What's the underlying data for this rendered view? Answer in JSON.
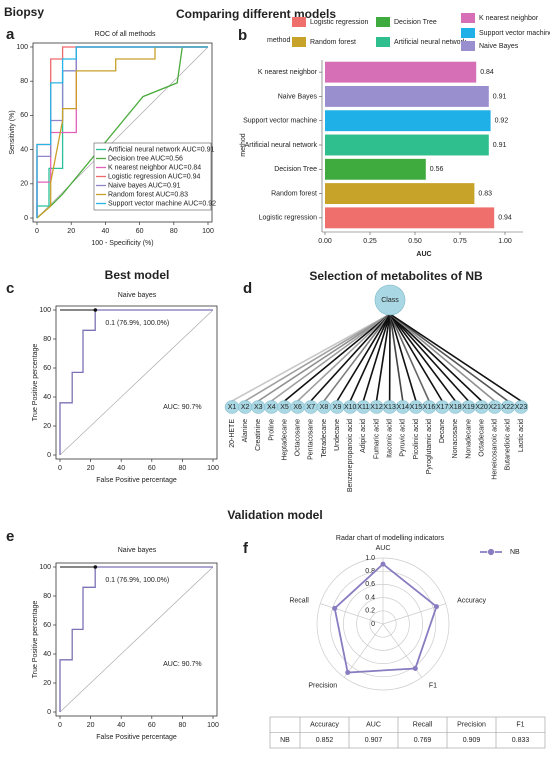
{
  "headings": {
    "biopsy": "Biopsy",
    "comparison": "Comparing different models",
    "validation": "Validation model"
  },
  "panel_labels": [
    "a",
    "b",
    "c",
    "d",
    "e",
    "f"
  ],
  "chart_data": [
    {
      "type": "roc",
      "title": "ROC of all methods",
      "xlabel": "100 - Specificity (%)",
      "ylabel": "Sensitivity (%)",
      "xlim": [
        0,
        100
      ],
      "ylim": [
        0,
        100
      ],
      "xticks": [
        0,
        20,
        40,
        60,
        80,
        100
      ],
      "yticks": [
        0,
        20,
        40,
        60,
        80,
        100
      ],
      "series": [
        {
          "name": "Artificial neural network AUC=0.91",
          "color": "#2bbf9a",
          "x": [
            0,
            0,
            7,
            7,
            15,
            15,
            23,
            23,
            100
          ],
          "values": [
            0,
            7,
            7,
            29,
            29,
            86,
            86,
            100,
            100
          ]
        },
        {
          "name": "Decision tree AUC=0.56",
          "color": "#4aab3c",
          "x": [
            0,
            8,
            15,
            62,
            82,
            85,
            100
          ],
          "values": [
            0,
            7,
            14,
            71,
            79,
            100,
            100
          ]
        },
        {
          "name": "K nearest neighbor AUC=0.84",
          "color": "#e062b8",
          "x": [
            0,
            0,
            8,
            8,
            23,
            23,
            100
          ],
          "values": [
            0,
            21,
            21,
            50,
            50,
            100,
            100
          ]
        },
        {
          "name": "Logistic regression AUC=0.94",
          "color": "#f0696c",
          "x": [
            0,
            0,
            8,
            8,
            15,
            15,
            100
          ],
          "values": [
            0,
            43,
            43,
            93,
            93,
            100,
            100
          ]
        },
        {
          "name": "Naive bayes AUC=0.91",
          "color": "#8f86c9",
          "x": [
            0,
            0,
            8,
            8,
            15,
            15,
            23,
            23,
            100
          ],
          "values": [
            0,
            36,
            36,
            57,
            57,
            86,
            86,
            100,
            100
          ]
        },
        {
          "name": "Random forest AUC=0.83",
          "color": "#c9a02a",
          "x": [
            0,
            8,
            8,
            15,
            15,
            23,
            23,
            46,
            46,
            69,
            69,
            100
          ],
          "values": [
            0,
            7,
            21,
            57,
            64,
            64,
            86,
            86,
            93,
            93,
            100,
            100
          ]
        },
        {
          "name": "Support vector machine AUC=0.92",
          "color": "#27b4e6",
          "x": [
            0,
            0,
            8,
            8,
            15,
            15,
            23,
            23,
            100
          ],
          "values": [
            0,
            43,
            43,
            79,
            79,
            93,
            93,
            100,
            100
          ]
        }
      ]
    },
    {
      "type": "hbar",
      "xlabel": "AUC",
      "ylabel": "method",
      "legend_title": "method",
      "categories": [
        "K nearest neighbor",
        "Naive Bayes",
        "Support vector machine",
        "Artificial neural network",
        "Decision Tree",
        "Random forest",
        "Logistic regression"
      ],
      "values": [
        0.84,
        0.91,
        0.92,
        0.91,
        0.56,
        0.83,
        0.94
      ],
      "colors": [
        "#d66fb5",
        "#9a8fce",
        "#1eb0e6",
        "#2fbf8e",
        "#3fab3f",
        "#c8a32a",
        "#ef6f6c"
      ],
      "legend": [
        {
          "label": "Logistic regression",
          "color": "#ef6f6c"
        },
        {
          "label": "Random forest",
          "color": "#c8a32a"
        },
        {
          "label": "Decision Tree",
          "color": "#3fab3f"
        },
        {
          "label": "Artificial neural network",
          "color": "#2fbf8e"
        },
        {
          "label": "K nearest neighbor",
          "color": "#d66fb5"
        },
        {
          "label": "Support vector machine",
          "color": "#1eb0e6"
        },
        {
          "label": "Naive Bayes",
          "color": "#9a8fce"
        }
      ],
      "xlim": [
        0,
        1.1
      ],
      "xticks": [
        {
          "value": 0,
          "label": "0.00"
        },
        0.25,
        {
          "value": 0.5,
          "label": "0.50"
        },
        0.75,
        {
          "value": 1,
          "label": "1.00"
        }
      ]
    },
    {
      "type": "roc",
      "heading": "Best model",
      "title": "Naive bayes",
      "xlabel": "False Positive percentage",
      "ylabel": "True Positive percentage",
      "xlim": [
        0,
        100
      ],
      "ylim": [
        0,
        100
      ],
      "xticks": [
        0,
        20,
        40,
        60,
        80,
        100
      ],
      "yticks": [
        0,
        20,
        40,
        60,
        80,
        100
      ],
      "x": [
        0,
        0,
        8,
        8,
        15,
        15,
        23,
        23,
        100
      ],
      "series": [
        {
          "color": "#7b72b5",
          "values": [
            0,
            36,
            36,
            57,
            57,
            86,
            86,
            100,
            100
          ]
        }
      ],
      "point": [
        23.1,
        100
      ],
      "annotation": "0.1 (76.9%, 100.0%)",
      "auc_label": "AUC: 90.7%",
      "auc_color": "#8f86c9"
    },
    {
      "type": "roc",
      "title": "Naive bayes",
      "xlabel": "False Positive percentage",
      "ylabel": "True Positive percentage",
      "xlim": [
        0,
        100
      ],
      "ylim": [
        0,
        100
      ],
      "xticks": [
        0,
        20,
        40,
        60,
        80,
        100
      ],
      "yticks": [
        0,
        20,
        40,
        60,
        80,
        100
      ],
      "x": [
        0,
        0,
        8,
        8,
        15,
        15,
        23,
        23,
        100
      ],
      "series": [
        {
          "color": "#7b72b5",
          "values": [
            0,
            36,
            36,
            57,
            57,
            86,
            86,
            100,
            100
          ]
        }
      ],
      "point": [
        23.1,
        100
      ],
      "annotation": "0.1 (76.9%, 100.0%)",
      "auc_label": "AUC: 90.7%",
      "auc_color": "#8f86c9"
    },
    {
      "type": "radar",
      "title": "Radar chart of modelling indicators",
      "axes": [
        "AUC",
        "Accuracy",
        "F1",
        "Precision",
        "Recall"
      ],
      "rlim": [
        0,
        1
      ],
      "rticks": [
        0,
        0.2,
        0.4,
        0.6,
        0.8,
        {
          "value": 1,
          "label": "1.0"
        }
      ],
      "series": [
        {
          "name": "NB",
          "color": "#8a7cc0",
          "values": [
            0.907,
            0.852,
            0.833,
            0.909,
            0.769
          ]
        }
      ]
    }
  ],
  "diagram": {
    "title": "Selection of metabolites of NB",
    "root": "Class",
    "nodes": [
      {
        "id": "X1",
        "label": "20-HETE",
        "edge_color": "#c8c8c8"
      },
      {
        "id": "X2",
        "label": "Alanine",
        "edge_color": "#a0a0a0"
      },
      {
        "id": "X3",
        "label": "Creatinine",
        "edge_color": "#909090"
      },
      {
        "id": "X4",
        "label": "Proline",
        "edge_color": "#a0a0a0"
      },
      {
        "id": "X5",
        "label": "Heptadecane",
        "edge_color": "#111111"
      },
      {
        "id": "X6",
        "label": "Octacosane",
        "edge_color": "#a0a0a0"
      },
      {
        "id": "X7",
        "label": "Pentacosane",
        "edge_color": "#111111"
      },
      {
        "id": "X8",
        "label": "Tetradecane",
        "edge_color": "#808080"
      },
      {
        "id": "X9",
        "label": "Undecane",
        "edge_color": "#111111"
      },
      {
        "id": "X10",
        "label": "Benzenepropanoic acid",
        "edge_color": "#111111"
      },
      {
        "id": "X11",
        "label": "Adipic acid",
        "edge_color": "#111111"
      },
      {
        "id": "X12",
        "label": "Fumaric acid",
        "edge_color": "#111111"
      },
      {
        "id": "X13",
        "label": "Itaconic acid",
        "edge_color": "#111111"
      },
      {
        "id": "X14",
        "label": "Pyruvic acid",
        "edge_color": "#444444"
      },
      {
        "id": "X15",
        "label": "Picolinic acid",
        "edge_color": "#111111"
      },
      {
        "id": "X16",
        "label": "Pyroglutamic acid",
        "edge_color": "#666666"
      },
      {
        "id": "X17",
        "label": "Decane",
        "edge_color": "#111111"
      },
      {
        "id": "X18",
        "label": "Nonacosane",
        "edge_color": "#111111"
      },
      {
        "id": "X19",
        "label": "Nonadecane",
        "edge_color": "#111111"
      },
      {
        "id": "X20",
        "label": "Octadecane",
        "edge_color": "#111111"
      },
      {
        "id": "X21",
        "label": "Heneicosanoic acid",
        "edge_color": "#909090"
      },
      {
        "id": "X22",
        "label": "Butanedioic acid",
        "edge_color": "#555555"
      },
      {
        "id": "X23",
        "label": "Lactic acid",
        "edge_color": "#111111"
      }
    ]
  },
  "table": {
    "header": [
      "Accuracy",
      "AUC",
      "Recall",
      "Precision",
      "F1"
    ],
    "rows": [
      [
        "NB",
        0.852,
        0.907,
        0.769,
        0.909,
        0.833
      ]
    ]
  }
}
